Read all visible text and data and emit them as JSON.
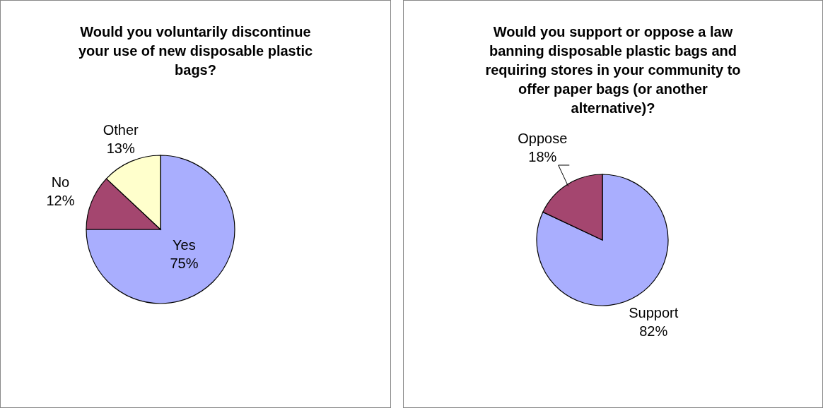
{
  "chart_data": [
    {
      "type": "pie",
      "title": "Would you voluntarily discontinue your use of new disposable plastic bags?",
      "categories": [
        "Yes",
        "No",
        "Other"
      ],
      "values": [
        75,
        12,
        13
      ],
      "colors": [
        "#a9aefe",
        "#a4466f",
        "#ffffcc"
      ],
      "value_labels": [
        "75%",
        "12%",
        "13%"
      ]
    },
    {
      "type": "pie",
      "title": "Would you support or oppose a law banning disposable plastic bags and requiring stores in your community to offer paper bags (or another alternative)?",
      "categories": [
        "Support",
        "Oppose"
      ],
      "values": [
        82,
        18
      ],
      "colors": [
        "#a9aefe",
        "#a4466f"
      ],
      "value_labels": [
        "82%",
        "18%"
      ]
    }
  ]
}
